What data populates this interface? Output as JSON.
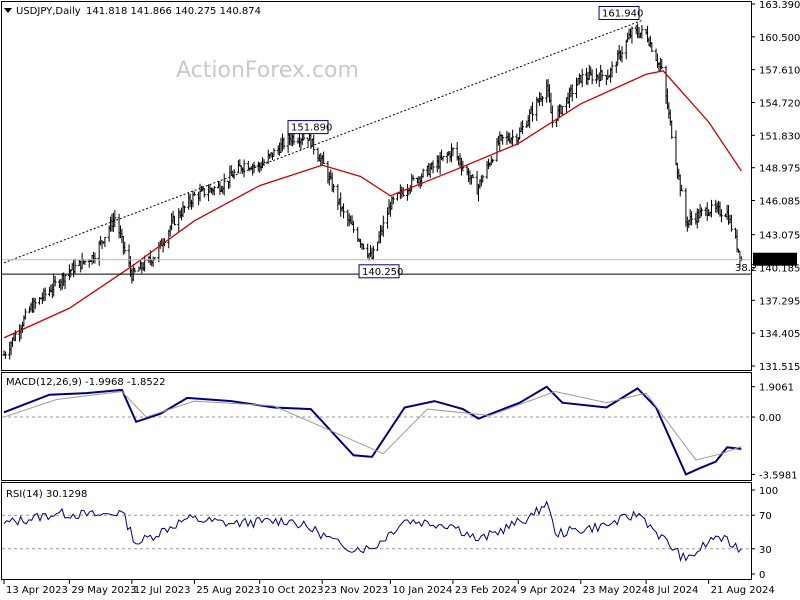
{
  "header": {
    "symbol_label": "USDJPY,Daily",
    "ohlc_values": "141.818 141.866 140.275 140.874"
  },
  "watermark": "ActionForex.com",
  "colors": {
    "price_bars": "#000000",
    "moving_average": "#cc0000",
    "macd_line": "#00007f",
    "macd_signal": "#9a9a9a",
    "rsi_line": "#00007f",
    "trendline": "#000000",
    "price_label_bg": "#000000",
    "price_label_text": "#ffffff"
  },
  "chart_data": [
    {
      "type": "candlestick",
      "panel": "price",
      "title": "USDJPY,Daily",
      "y_ticks": [
        "163.390",
        "160.500",
        "157.610",
        "154.720",
        "151.830",
        "148.975",
        "146.085",
        "143.075",
        "140.185",
        "137.295",
        "134.405",
        "131.515"
      ],
      "ylim": [
        131.515,
        163.39
      ],
      "x_ticks": [
        "13 Apr 2023",
        "29 May 2023",
        "12 Jul 2023",
        "25 Aug 2023",
        "10 Oct 2023",
        "23 Nov 2023",
        "10 Jan 2024",
        "23 Feb 2024",
        "9 Apr 2024",
        "23 May 2024",
        "8 Jul 2024",
        "21 Aug 2024"
      ],
      "x_dates": [
        "2023-04-13",
        "2023-05-29",
        "2023-07-12",
        "2023-08-25",
        "2023-10-10",
        "2023-11-23",
        "2024-01-10",
        "2024-02-23",
        "2024-04-09",
        "2024-05-23",
        "2024-07-08",
        "2024-08-21"
      ],
      "close_series": [
        {
          "date": "2023-04-13",
          "close": 132.5
        },
        {
          "date": "2023-05-01",
          "close": 136.5
        },
        {
          "date": "2023-05-29",
          "close": 139.9
        },
        {
          "date": "2023-06-15",
          "close": 141.2
        },
        {
          "date": "2023-06-30",
          "close": 144.6
        },
        {
          "date": "2023-07-12",
          "close": 139.5
        },
        {
          "date": "2023-07-28",
          "close": 141.2
        },
        {
          "date": "2023-08-10",
          "close": 144.2
        },
        {
          "date": "2023-08-25",
          "close": 146.5
        },
        {
          "date": "2023-09-13",
          "close": 147.4
        },
        {
          "date": "2023-09-29",
          "close": 149.3
        },
        {
          "date": "2023-10-10",
          "close": 149.1
        },
        {
          "date": "2023-10-31",
          "close": 151.6
        },
        {
          "date": "2023-11-13",
          "close": 151.7
        },
        {
          "date": "2023-11-23",
          "close": 149.5
        },
        {
          "date": "2023-12-08",
          "close": 144.9
        },
        {
          "date": "2023-12-28",
          "close": 141.0
        },
        {
          "date": "2024-01-10",
          "close": 145.7
        },
        {
          "date": "2024-01-25",
          "close": 147.7
        },
        {
          "date": "2024-02-12",
          "close": 149.3
        },
        {
          "date": "2024-02-23",
          "close": 150.5
        },
        {
          "date": "2024-03-11",
          "close": 147.1
        },
        {
          "date": "2024-03-27",
          "close": 151.4
        },
        {
          "date": "2024-04-09",
          "close": 151.8
        },
        {
          "date": "2024-04-29",
          "close": 156.2
        },
        {
          "date": "2024-05-03",
          "close": 153.0
        },
        {
          "date": "2024-05-23",
          "close": 156.9
        },
        {
          "date": "2024-06-12",
          "close": 157.2
        },
        {
          "date": "2024-06-28",
          "close": 160.9
        },
        {
          "date": "2024-07-08",
          "close": 160.8
        },
        {
          "date": "2024-07-19",
          "close": 157.5
        },
        {
          "date": "2024-08-05",
          "close": 144.2
        },
        {
          "date": "2024-08-21",
          "close": 145.3
        },
        {
          "date": "2024-09-03",
          "close": 145.0
        },
        {
          "date": "2024-09-13",
          "close": 140.9
        }
      ],
      "moving_average": [
        {
          "date": "2023-04-13",
          "value": 134.0
        },
        {
          "date": "2023-05-29",
          "value": 136.6
        },
        {
          "date": "2023-07-12",
          "value": 140.3
        },
        {
          "date": "2023-08-25",
          "value": 144.3
        },
        {
          "date": "2023-10-10",
          "value": 147.4
        },
        {
          "date": "2023-11-23",
          "value": 149.2
        },
        {
          "date": "2023-12-20",
          "value": 148.2
        },
        {
          "date": "2024-01-10",
          "value": 146.5
        },
        {
          "date": "2024-02-23",
          "value": 148.7
        },
        {
          "date": "2024-04-09",
          "value": 151.1
        },
        {
          "date": "2024-05-23",
          "value": 154.6
        },
        {
          "date": "2024-07-08",
          "value": 157.2
        },
        {
          "date": "2024-07-20",
          "value": 157.5
        },
        {
          "date": "2024-08-21",
          "value": 153.0
        },
        {
          "date": "2024-09-13",
          "value": 148.7
        }
      ],
      "labels": [
        {
          "date": "2023-11-13",
          "value": 151.89,
          "text": "151.890"
        },
        {
          "date": "2024-01-02",
          "value": 140.25,
          "text": "140.250"
        },
        {
          "date": "2024-07-03",
          "value": 161.94,
          "text": "161.940"
        }
      ],
      "current_price_label": "140.874",
      "current_price": 140.874,
      "retracement_level": {
        "value": 139.6,
        "label": "38.2"
      },
      "trendline": [
        {
          "date": "2023-04-13",
          "value": 140.6
        },
        {
          "date": "2024-07-05",
          "value": 161.94
        }
      ]
    },
    {
      "type": "line",
      "panel": "macd",
      "title": "MACD(12,26,9) -1.9968 -1.8522",
      "y_ticks": [
        "1.9061",
        "0.00",
        "-3.5981"
      ],
      "ylim": [
        -3.95,
        2.7
      ],
      "series": [
        {
          "name": "MACD",
          "points": [
            {
              "date": "2023-04-13",
              "value": 0.3
            },
            {
              "date": "2023-05-15",
              "value": 1.4
            },
            {
              "date": "2023-06-10",
              "value": 1.5
            },
            {
              "date": "2023-07-05",
              "value": 1.7
            },
            {
              "date": "2023-07-15",
              "value": -0.3
            },
            {
              "date": "2023-08-01",
              "value": 0.2
            },
            {
              "date": "2023-08-20",
              "value": 1.2
            },
            {
              "date": "2023-09-20",
              "value": 1.0
            },
            {
              "date": "2023-10-20",
              "value": 0.6
            },
            {
              "date": "2023-11-15",
              "value": 0.5
            },
            {
              "date": "2023-12-15",
              "value": -2.4
            },
            {
              "date": "2023-12-28",
              "value": -2.5
            },
            {
              "date": "2024-01-20",
              "value": 0.6
            },
            {
              "date": "2024-02-10",
              "value": 1.0
            },
            {
              "date": "2024-03-01",
              "value": 0.5
            },
            {
              "date": "2024-03-12",
              "value": -0.1
            },
            {
              "date": "2024-04-10",
              "value": 0.9
            },
            {
              "date": "2024-04-29",
              "value": 1.9
            },
            {
              "date": "2024-05-10",
              "value": 0.9
            },
            {
              "date": "2024-06-10",
              "value": 0.6
            },
            {
              "date": "2024-07-02",
              "value": 1.8
            },
            {
              "date": "2024-07-15",
              "value": 0.6
            },
            {
              "date": "2024-08-05",
              "value": -3.6
            },
            {
              "date": "2024-08-15",
              "value": -3.2
            },
            {
              "date": "2024-08-26",
              "value": -2.8
            },
            {
              "date": "2024-09-03",
              "value": -1.9
            },
            {
              "date": "2024-09-13",
              "value": -2.0
            }
          ]
        },
        {
          "name": "Signal",
          "points": [
            {
              "date": "2023-04-13",
              "value": 0.0
            },
            {
              "date": "2023-05-20",
              "value": 1.1
            },
            {
              "date": "2023-07-05",
              "value": 1.6
            },
            {
              "date": "2023-07-22",
              "value": 0.0
            },
            {
              "date": "2023-08-25",
              "value": 1.0
            },
            {
              "date": "2023-10-20",
              "value": 0.7
            },
            {
              "date": "2023-11-25",
              "value": -0.7
            },
            {
              "date": "2024-01-05",
              "value": -2.3
            },
            {
              "date": "2024-02-05",
              "value": 0.5
            },
            {
              "date": "2024-03-20",
              "value": 0.1
            },
            {
              "date": "2024-05-05",
              "value": 1.6
            },
            {
              "date": "2024-06-10",
              "value": 0.9
            },
            {
              "date": "2024-07-08",
              "value": 1.5
            },
            {
              "date": "2024-08-12",
              "value": -2.7
            },
            {
              "date": "2024-08-30",
              "value": -2.3
            },
            {
              "date": "2024-09-13",
              "value": -1.85
            }
          ]
        }
      ]
    },
    {
      "type": "line",
      "panel": "rsi",
      "title": "RSI(14) 30.1298",
      "y_ticks": [
        "100",
        "70",
        "30",
        "0"
      ],
      "ylim": [
        0,
        100
      ],
      "series": [
        {
          "name": "RSI(14)",
          "points": [
            {
              "date": "2023-04-13",
              "value": 60
            },
            {
              "date": "2023-05-20",
              "value": 72
            },
            {
              "date": "2023-06-20",
              "value": 70
            },
            {
              "date": "2023-07-05",
              "value": 74
            },
            {
              "date": "2023-07-15",
              "value": 36
            },
            {
              "date": "2023-08-20",
              "value": 66
            },
            {
              "date": "2023-09-20",
              "value": 60
            },
            {
              "date": "2023-10-31",
              "value": 64
            },
            {
              "date": "2023-11-20",
              "value": 50
            },
            {
              "date": "2023-12-08",
              "value": 32
            },
            {
              "date": "2023-12-28",
              "value": 30
            },
            {
              "date": "2024-01-20",
              "value": 64
            },
            {
              "date": "2024-02-23",
              "value": 58
            },
            {
              "date": "2024-03-12",
              "value": 40
            },
            {
              "date": "2024-04-20",
              "value": 70
            },
            {
              "date": "2024-04-29",
              "value": 86
            },
            {
              "date": "2024-05-05",
              "value": 48
            },
            {
              "date": "2024-06-10",
              "value": 58
            },
            {
              "date": "2024-07-03",
              "value": 72
            },
            {
              "date": "2024-07-15",
              "value": 50
            },
            {
              "date": "2024-08-05",
              "value": 16
            },
            {
              "date": "2024-08-21",
              "value": 38
            },
            {
              "date": "2024-08-26",
              "value": 45
            },
            {
              "date": "2024-09-13",
              "value": 30
            }
          ]
        }
      ]
    }
  ]
}
